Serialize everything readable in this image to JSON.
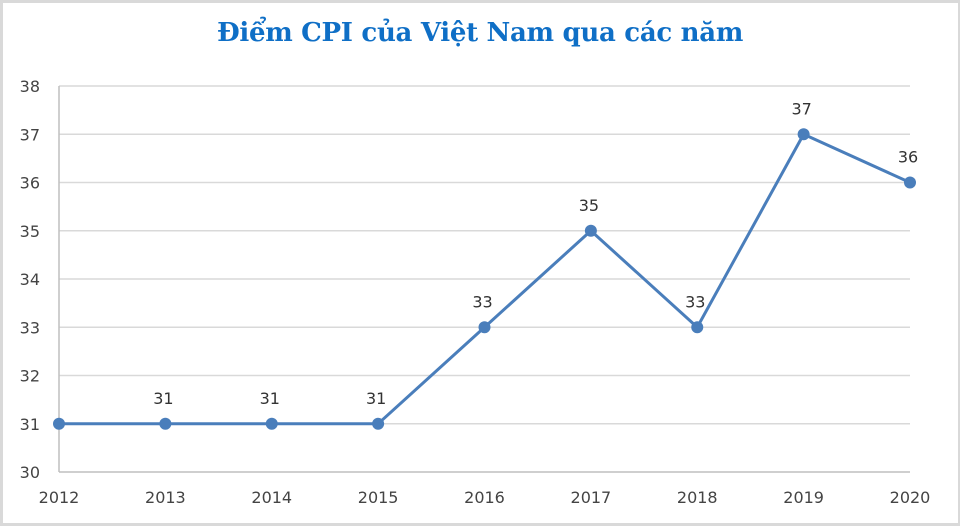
{
  "chart_data": {
    "type": "line",
    "title": "Điểm CPI của Việt Nam qua các năm",
    "xlabel": "",
    "ylabel": "",
    "categories": [
      "2012",
      "2013",
      "2014",
      "2015",
      "2016",
      "2017",
      "2018",
      "2019",
      "2020"
    ],
    "series": [
      {
        "name": "Điểm CPI",
        "values": [
          31,
          31,
          31,
          31,
          33,
          35,
          33,
          37,
          36
        ],
        "color": "#4a7ebb",
        "marker": "circle"
      }
    ],
    "data_labels": [
      "31",
      "31",
      "31",
      "31",
      "33",
      "35",
      "33",
      "37",
      "36"
    ],
    "data_label_shown": [
      false,
      true,
      true,
      true,
      true,
      true,
      true,
      true,
      true
    ],
    "ylim": [
      30,
      38
    ],
    "yticks": [
      "30",
      "31",
      "32",
      "33",
      "34",
      "35",
      "36",
      "37",
      "38"
    ],
    "grid": "horizontal",
    "legend": "none"
  },
  "colors": {
    "title": "#0f6fc6",
    "line": "#4a7ebb",
    "grid": "#d9d9d9",
    "axis": "#bfbfbf",
    "text": "#444444"
  }
}
